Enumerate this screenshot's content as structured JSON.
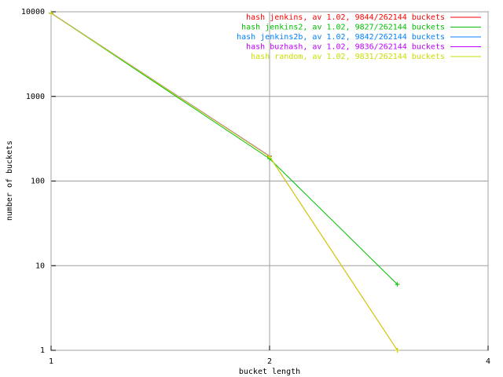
{
  "chart_data": {
    "type": "line",
    "x_label": "bucket length",
    "y_label": "number of buckets",
    "x": [
      1,
      2,
      3
    ],
    "xlim": [
      1,
      4
    ],
    "xticks": [
      1,
      2,
      4
    ],
    "x_log": true,
    "ylim": [
      1,
      10000
    ],
    "yticks": [
      1,
      10,
      100,
      1000,
      10000
    ],
    "y_log": true,
    "grid": true,
    "legend": "top-right",
    "series": [
      {
        "name": "hash jenkins, av 1.02, 9844/262144 buckets",
        "color": "#ff0000",
        "values": [
          9648,
          195,
          1
        ]
      },
      {
        "name": "hash jenkins2, av 1.02, 9827/262144 buckets",
        "color": "#00c000",
        "values": [
          9637,
          184,
          6
        ]
      },
      {
        "name": "hash jenkins2b, av 1.02, 9842/262144 buckets",
        "color": "#0080ff",
        "values": [
          9645,
          197,
          null
        ]
      },
      {
        "name": "hash buzhash, av 1.02, 9836/262144 buckets",
        "color": "#c000ff",
        "values": [
          9639,
          197,
          null
        ]
      },
      {
        "name": "hash random, av 1.02, 9831/262144 buckets",
        "color": "#c8e000",
        "values": [
          9635,
          195,
          1
        ]
      }
    ]
  }
}
